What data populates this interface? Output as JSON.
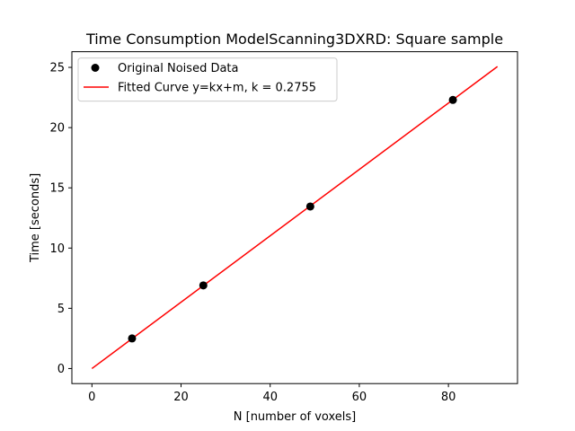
{
  "chart_data": {
    "type": "scatter",
    "title": "Time Consumption ModelScanning3DXRD: Square sample",
    "xlabel": "N [number of voxels]",
    "ylabel": "Time [seconds]",
    "xlim": [
      -4.5,
      95.5
    ],
    "ylim": [
      -1.25,
      26.3
    ],
    "xticks": [
      0,
      20,
      40,
      60,
      80
    ],
    "yticks": [
      0,
      5,
      10,
      15,
      20,
      25
    ],
    "xtick_labels": [
      "0",
      "20",
      "40",
      "60",
      "80"
    ],
    "ytick_labels": [
      "0",
      "5",
      "10",
      "15",
      "20",
      "25"
    ],
    "grid": false,
    "legend_position": "top-left",
    "series": [
      {
        "name": "Original Noised Data",
        "kind": "scatter",
        "color": "#000000",
        "x": [
          9,
          25,
          49,
          81
        ],
        "y": [
          2.5,
          6.9,
          13.45,
          22.3
        ]
      },
      {
        "name": "Fitted Curve y=kx+m, k = 0.2755",
        "kind": "line",
        "color": "#ff0000",
        "x": [
          0,
          91
        ],
        "y": [
          0.0,
          25.07
        ]
      }
    ]
  }
}
